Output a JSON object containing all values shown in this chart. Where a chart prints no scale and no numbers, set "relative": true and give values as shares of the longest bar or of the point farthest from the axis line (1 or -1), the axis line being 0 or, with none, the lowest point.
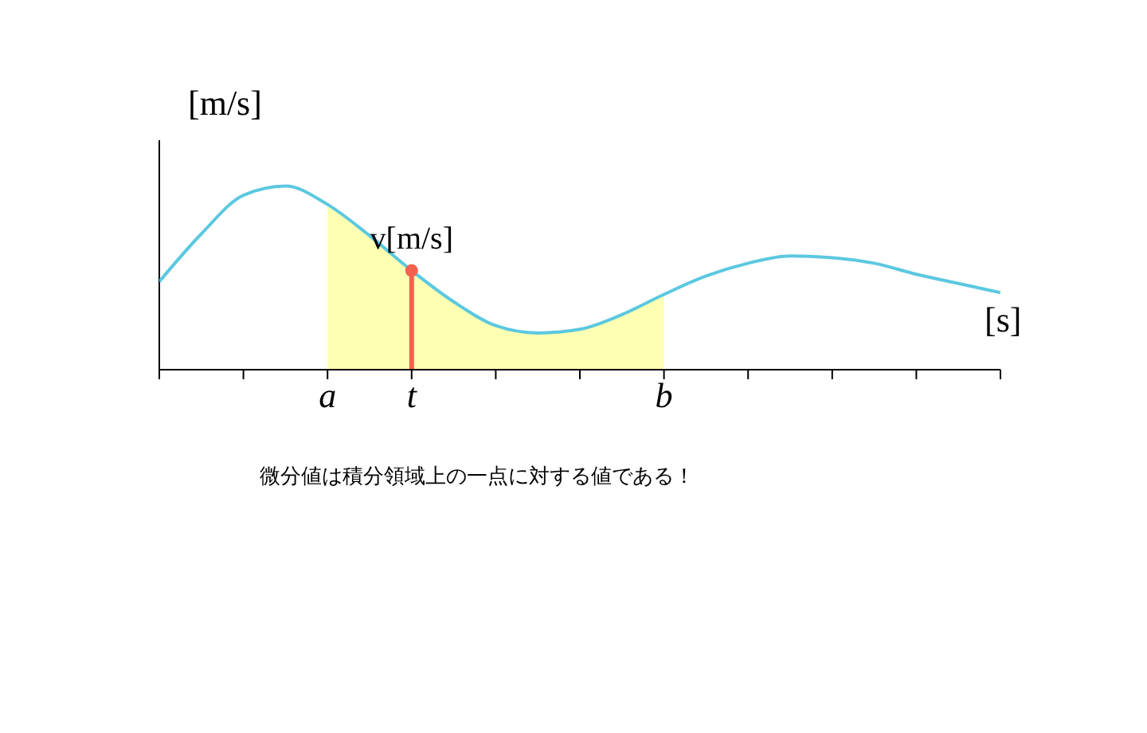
{
  "chart_data": {
    "type": "line",
    "relative": true,
    "xlabel": "[s]",
    "ylabel": "[m/s]",
    "categories": [
      null,
      null,
      null,
      null,
      "a",
      null,
      "t",
      null,
      null,
      null,
      null,
      null,
      "b",
      null,
      null,
      null,
      null,
      null,
      null,
      null,
      null
    ],
    "series": [
      {
        "type": "area",
        "color": "#ffffb3",
        "values": [
          null,
          null,
          null,
          null,
          0.9,
          0.73,
          0.54,
          0.37,
          0.24,
          0.2,
          0.22,
          0.3,
          0.41,
          null,
          null,
          null,
          null,
          null,
          null,
          null,
          null
        ]
      },
      {
        "color": "#5bc8e0",
        "values": [
          0.48,
          0.74,
          0.95,
          1,
          0.9,
          0.73,
          0.54,
          0.37,
          0.24,
          0.2,
          0.22,
          0.3,
          0.41,
          0.51,
          0.58,
          0.62,
          0.61,
          0.58,
          0.52,
          0.47,
          0.42
        ]
      },
      {
        "type": "lollipop",
        "color": "#f4614f",
        "values": [
          null,
          null,
          null,
          null,
          null,
          null,
          0.54,
          null,
          null,
          null,
          null,
          null,
          null,
          null,
          null,
          null,
          null,
          null,
          null,
          null,
          null
        ]
      }
    ],
    "annotations": [
      {
        "text": "v[m/s]",
        "x": "t",
        "y": 0.54
      },
      "微分値は積分領域上の一点に対する値である！"
    ]
  }
}
